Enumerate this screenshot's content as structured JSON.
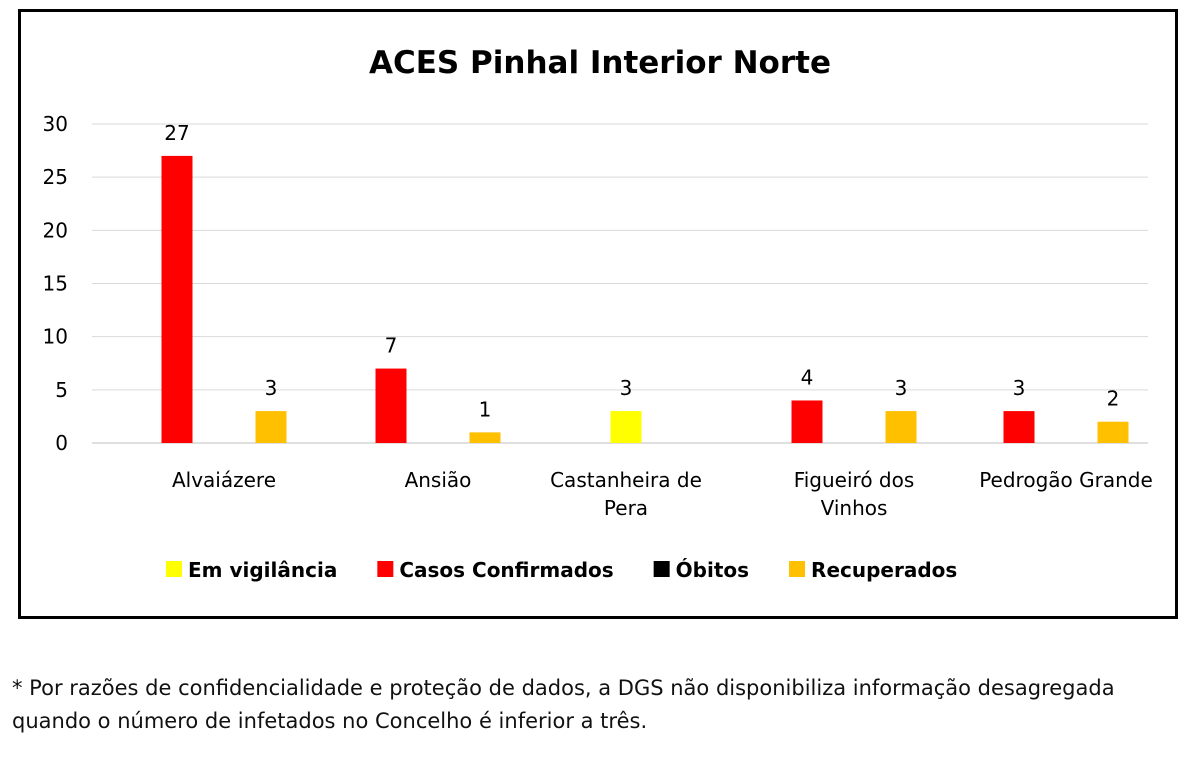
{
  "chart_data": {
    "type": "bar",
    "title": "ACES Pinhal Interior Norte",
    "xlabel": "",
    "ylabel": "",
    "ylim": [
      0,
      30
    ],
    "yticks": [
      0,
      5,
      10,
      15,
      20,
      25,
      30
    ],
    "grid": true,
    "legend_position": "bottom",
    "categories": [
      [
        "Alvaiázere"
      ],
      [
        "Ansião"
      ],
      [
        "Castanheira de",
        "Pera"
      ],
      [
        "Figueiró dos",
        "Vinhos"
      ],
      [
        "Pedrogão Grande"
      ]
    ],
    "series": [
      {
        "name": "Em vigilância",
        "color": "#FFFF00",
        "values": [
          null,
          null,
          3,
          null,
          null
        ]
      },
      {
        "name": "Casos Confirmados",
        "color": "#FF0000",
        "values": [
          27,
          7,
          null,
          4,
          3
        ]
      },
      {
        "name": "Óbitos",
        "color": "#000000",
        "values": [
          null,
          null,
          null,
          null,
          null
        ]
      },
      {
        "name": "Recuperados",
        "color": "#FFC000",
        "values": [
          3,
          1,
          null,
          3,
          2
        ]
      }
    ]
  },
  "footnote": "* Por razões de confidencialidade e proteção de dados, a DGS não disponibiliza informação desagregada quando o número de infetados no Concelho é inferior a três."
}
